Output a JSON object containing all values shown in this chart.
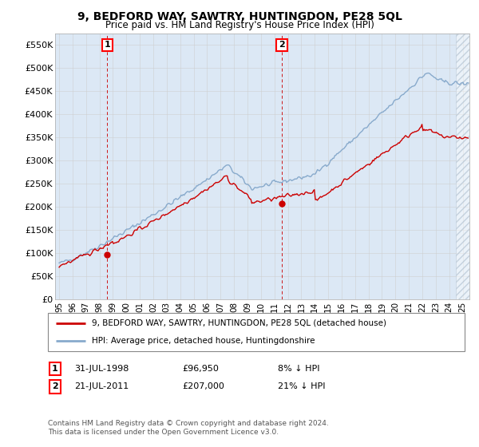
{
  "title": "9, BEDFORD WAY, SAWTRY, HUNTINGDON, PE28 5QL",
  "subtitle": "Price paid vs. HM Land Registry's House Price Index (HPI)",
  "ylabel_ticks": [
    "£0",
    "£50K",
    "£100K",
    "£150K",
    "£200K",
    "£250K",
    "£300K",
    "£350K",
    "£400K",
    "£450K",
    "£500K",
    "£550K"
  ],
  "ytick_values": [
    0,
    50000,
    100000,
    150000,
    200000,
    250000,
    300000,
    350000,
    400000,
    450000,
    500000,
    550000
  ],
  "ylim": [
    0,
    575000
  ],
  "xlim_start": 1994.7,
  "xlim_end": 2025.5,
  "sale1_x": 1998.58,
  "sale1_y": 96950,
  "sale2_x": 2011.55,
  "sale2_y": 207000,
  "sale1_label": "1",
  "sale2_label": "2",
  "legend_line1": "9, BEDFORD WAY, SAWTRY, HUNTINGDON, PE28 5QL (detached house)",
  "legend_line2": "HPI: Average price, detached house, Huntingdonshire",
  "footer": "Contains HM Land Registry data © Crown copyright and database right 2024.\nThis data is licensed under the Open Government Licence v3.0.",
  "red_color": "#cc0000",
  "blue_color": "#88aacc",
  "bg_color": "#dce8f5",
  "grid_color": "#cccccc",
  "x_ticks": [
    1995,
    1996,
    1997,
    1998,
    1999,
    2000,
    2001,
    2002,
    2003,
    2004,
    2005,
    2006,
    2007,
    2008,
    2009,
    2010,
    2011,
    2012,
    2013,
    2014,
    2015,
    2016,
    2017,
    2018,
    2019,
    2020,
    2021,
    2022,
    2023,
    2024,
    2025
  ],
  "x_tick_labels": [
    "95",
    "96",
    "97",
    "98",
    "99",
    "00",
    "01",
    "02",
    "03",
    "04",
    "05",
    "06",
    "07",
    "08",
    "09",
    "10",
    "11",
    "12",
    "13",
    "14",
    "15",
    "16",
    "17",
    "18",
    "19",
    "20",
    "21",
    "22",
    "23",
    "24",
    "25"
  ],
  "hatch_start": 2024.5,
  "sale1_date": "31-JUL-1998",
  "sale1_price": "£96,950",
  "sale1_hpi": "8% ↓ HPI",
  "sale2_date": "21-JUL-2011",
  "sale2_price": "£207,000",
  "sale2_hpi": "21% ↓ HPI"
}
